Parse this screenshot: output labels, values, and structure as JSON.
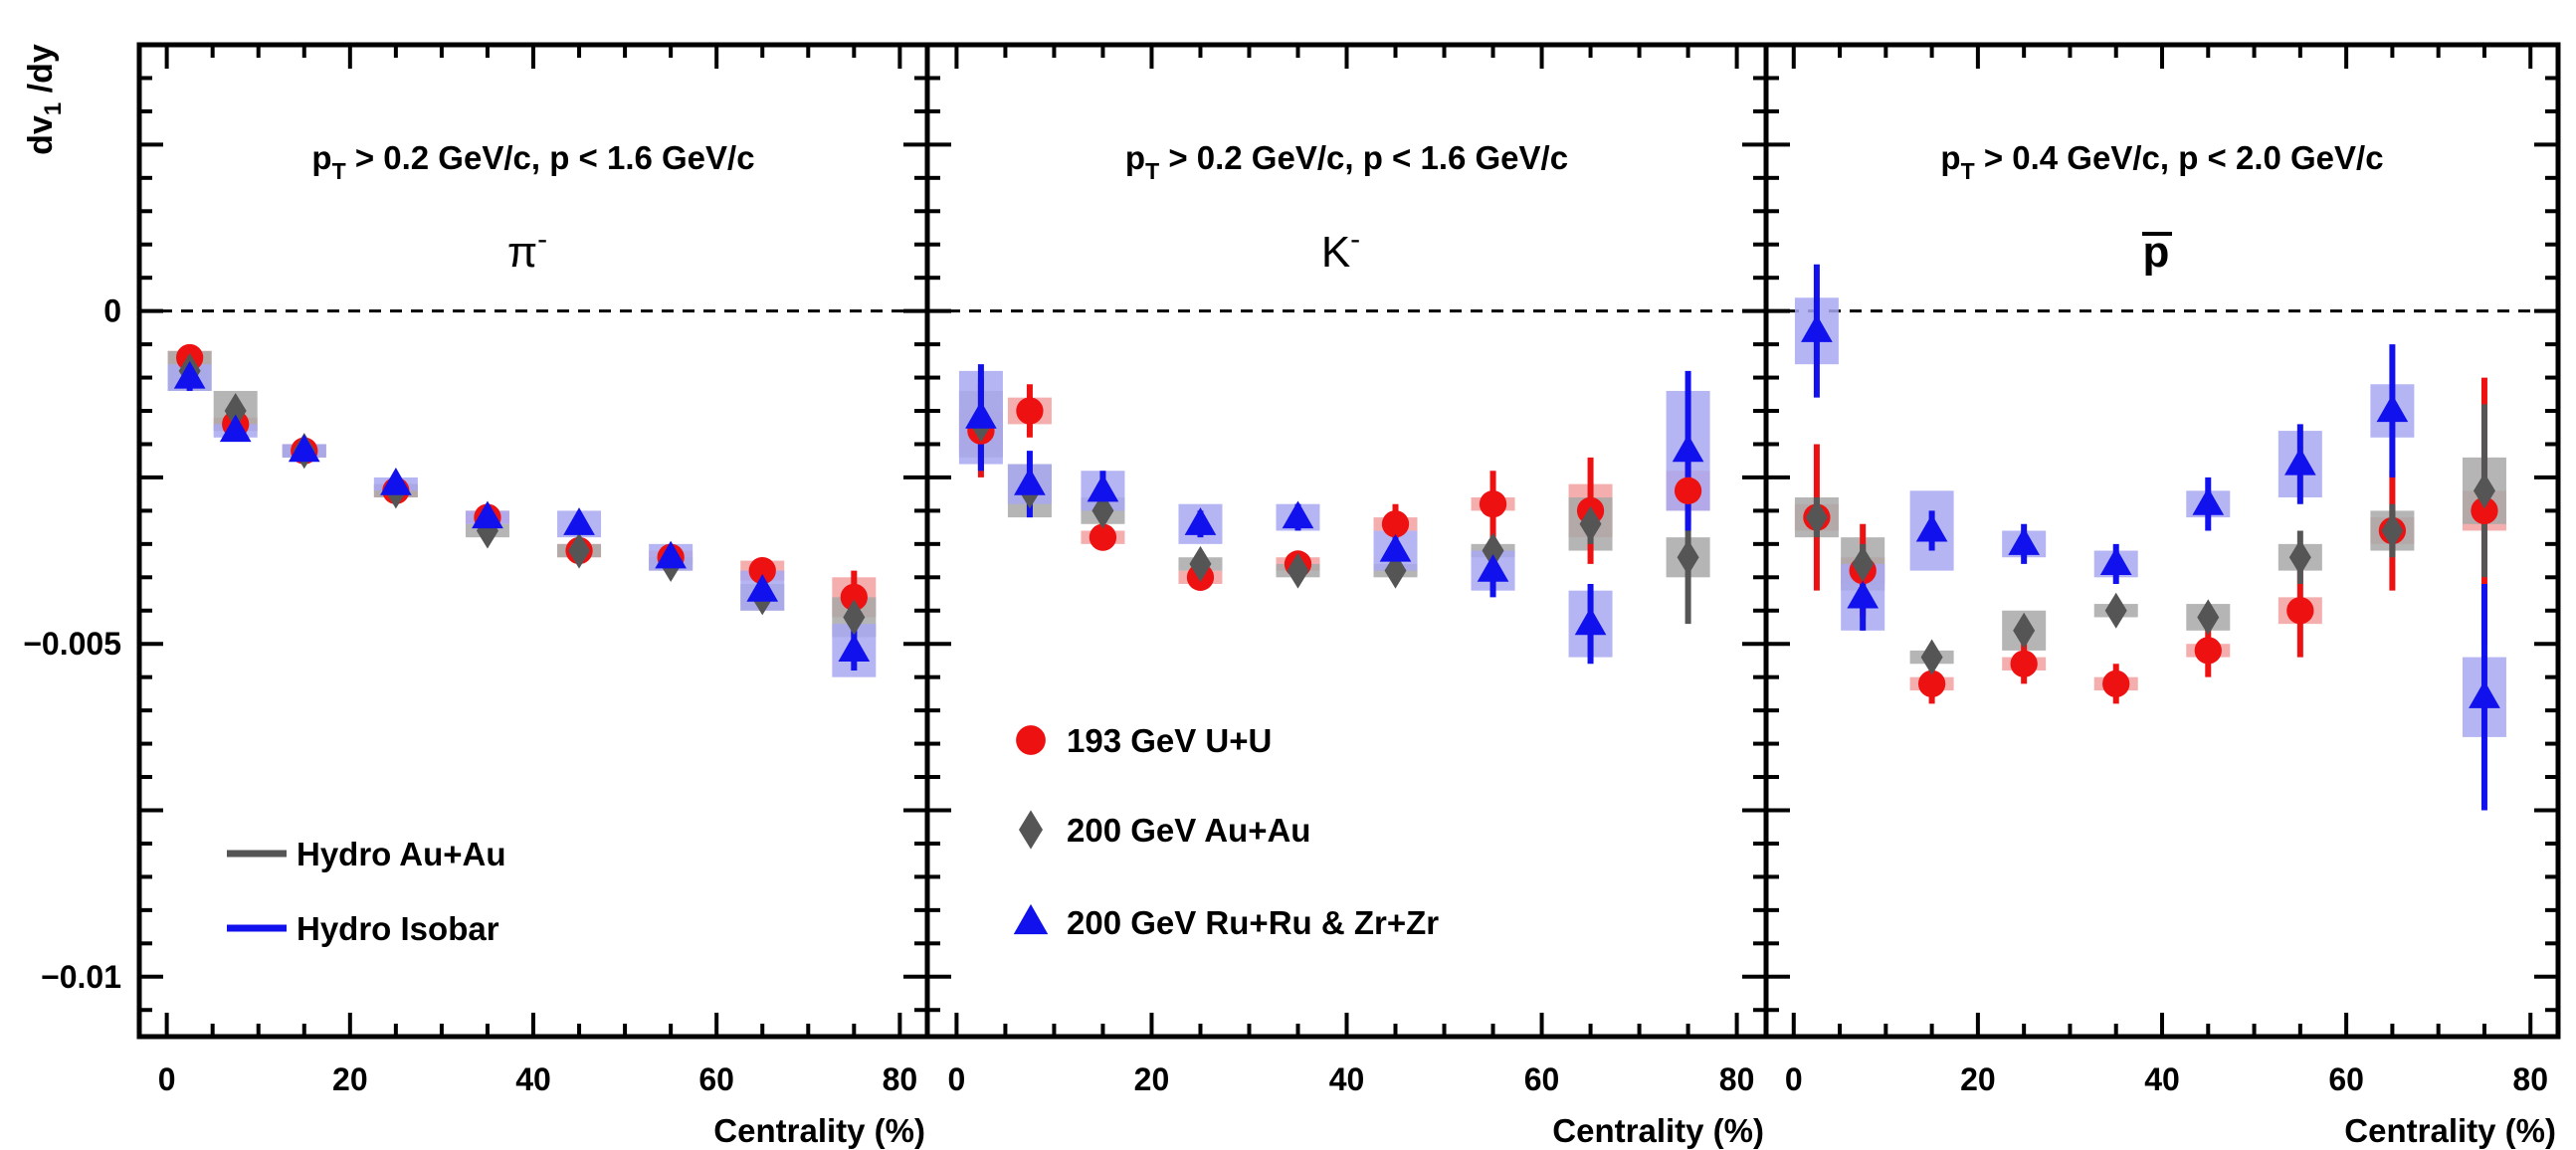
{
  "chart_data": {
    "type": "scatter",
    "ylabel": "dv",
    "ylabel_sub": "1",
    "ylabel_tail": " /dy",
    "xlabel": "Centrality (%)",
    "xlim": [
      -3,
      83
    ],
    "ylim": [
      -0.0109,
      0.004
    ],
    "x_ticks": [
      "0",
      "20",
      "40",
      "60",
      "80"
    ],
    "y_ticks": [
      {
        "value": 0,
        "label": "0"
      },
      {
        "value": -0.005,
        "label": "−0.005"
      },
      {
        "value": -0.01,
        "label": "−0.01"
      }
    ],
    "zero_line": true,
    "legend_markers": [
      {
        "label": "193 GeV U+U",
        "marker": "circle",
        "color": "#ee1111"
      },
      {
        "label": "200 GeV Au+Au",
        "marker": "diamond",
        "color": "#555555"
      },
      {
        "label": "200 GeV Ru+Ru & Zr+Zr",
        "marker": "triangle",
        "color": "#1111ee"
      }
    ],
    "legend_lines": [
      {
        "label": "Hydro Au+Au",
        "color": "#555555"
      },
      {
        "label": "Hydro Isobar",
        "color": "#1111ee"
      }
    ],
    "series_style": {
      "uu": {
        "marker": "circle",
        "color": "#ee1111",
        "box": "#f2a0a0"
      },
      "auau": {
        "marker": "diamond",
        "color": "#555555",
        "box": "#a8a8a8"
      },
      "iso": {
        "marker": "triangle",
        "color": "#1111ee",
        "box": "#a8a8f2"
      }
    },
    "panels": [
      {
        "particle": "π",
        "particle_sup": "-",
        "cut": {
          "p": "p",
          "T": "T",
          "text": " > 0.2 GeV/c, p < 1.6 GeV/c"
        },
        "series": {
          "uu": [
            {
              "x": 2.5,
              "y": -0.0007,
              "err": 0.0001,
              "sys": 0.0001
            },
            {
              "x": 7.5,
              "y": -0.0017,
              "err": 0.0001,
              "sys": 0.0001
            },
            {
              "x": 15,
              "y": -0.0021,
              "err": 0.0001,
              "sys": 0.0001
            },
            {
              "x": 25,
              "y": -0.0027,
              "err": 0.0001,
              "sys": 0.0001
            },
            {
              "x": 35,
              "y": -0.0031,
              "err": 0.0001,
              "sys": 0.0001
            },
            {
              "x": 45,
              "y": -0.0036,
              "err": 0.0001,
              "sys": 0.0001
            },
            {
              "x": 55,
              "y": -0.0037,
              "err": 0.0001,
              "sys": 0.0001
            },
            {
              "x": 65,
              "y": -0.0039,
              "err": 0.0001,
              "sys": 0.00015
            },
            {
              "x": 75,
              "y": -0.0043,
              "err": 0.0004,
              "sys": 0.0003
            }
          ],
          "auau": [
            {
              "x": 2.5,
              "y": -0.0009,
              "err": 0.0001,
              "sys": 0.0003
            },
            {
              "x": 7.5,
              "y": -0.0015,
              "err": 0.0001,
              "sys": 0.0003
            },
            {
              "x": 15,
              "y": -0.0021,
              "err": 0.0001,
              "sys": 0.0001
            },
            {
              "x": 25,
              "y": -0.0027,
              "err": 0.0001,
              "sys": 0.0001
            },
            {
              "x": 35,
              "y": -0.0033,
              "err": 0.0001,
              "sys": 0.0001
            },
            {
              "x": 45,
              "y": -0.0036,
              "err": 0.0001,
              "sys": 0.0001
            },
            {
              "x": 55,
              "y": -0.0038,
              "err": 0.0001,
              "sys": 0.0001
            },
            {
              "x": 65,
              "y": -0.0043,
              "err": 0.0001,
              "sys": 0.0002
            },
            {
              "x": 75,
              "y": -0.0046,
              "err": 0.0003,
              "sys": 0.0003
            }
          ],
          "iso": [
            {
              "x": 2.5,
              "y": -0.001,
              "err": 0.0002,
              "sys": 0.0002
            },
            {
              "x": 7.5,
              "y": -0.0018,
              "err": 0.0001,
              "sys": 0.0001
            },
            {
              "x": 15,
              "y": -0.0021,
              "err": 0.0001,
              "sys": 0.0001
            },
            {
              "x": 25,
              "y": -0.0026,
              "err": 0.0001,
              "sys": 0.0001
            },
            {
              "x": 35,
              "y": -0.0031,
              "err": 0.0001,
              "sys": 0.0001
            },
            {
              "x": 45,
              "y": -0.0032,
              "err": 0.0001,
              "sys": 0.0002
            },
            {
              "x": 55,
              "y": -0.0037,
              "err": 0.0001,
              "sys": 0.0002
            },
            {
              "x": 65,
              "y": -0.0042,
              "err": 0.0001,
              "sys": 0.0003
            },
            {
              "x": 75,
              "y": -0.0051,
              "err": 0.0003,
              "sys": 0.0004
            }
          ]
        }
      },
      {
        "particle": "K",
        "particle_sup": "-",
        "cut": {
          "p": "p",
          "T": "T",
          "text": " > 0.2 GeV/c, p < 1.6 GeV/c"
        },
        "series": {
          "uu": [
            {
              "x": 2.5,
              "y": -0.0018,
              "err": 0.0007,
              "sys": 0.0003
            },
            {
              "x": 7.5,
              "y": -0.0015,
              "err": 0.0004,
              "sys": 0.0002
            },
            {
              "x": 15,
              "y": -0.0034,
              "err": 0.0002,
              "sys": 0.0001
            },
            {
              "x": 25,
              "y": -0.004,
              "err": 0.0002,
              "sys": 0.0001
            },
            {
              "x": 35,
              "y": -0.0038,
              "err": 0.0002,
              "sys": 0.0001
            },
            {
              "x": 45,
              "y": -0.0032,
              "err": 0.0003,
              "sys": 0.0001
            },
            {
              "x": 55,
              "y": -0.0029,
              "err": 0.0005,
              "sys": 0.0001
            },
            {
              "x": 65,
              "y": -0.003,
              "err": 0.0008,
              "sys": 0.0004
            },
            {
              "x": 75,
              "y": -0.0027,
              "err": 0.0005,
              "sys": 0.0003
            }
          ],
          "auau": [
            {
              "x": 2.5,
              "y": -0.0017,
              "err": 0.0007,
              "sys": 0.0005
            },
            {
              "x": 7.5,
              "y": -0.0027,
              "err": 0.0003,
              "sys": 0.0004
            },
            {
              "x": 15,
              "y": -0.003,
              "err": 0.0002,
              "sys": 0.0002
            },
            {
              "x": 25,
              "y": -0.0038,
              "err": 0.0001,
              "sys": 0.0001
            },
            {
              "x": 35,
              "y": -0.0039,
              "err": 0.0001,
              "sys": 0.0001
            },
            {
              "x": 45,
              "y": -0.0039,
              "err": 0.0001,
              "sys": 0.0001
            },
            {
              "x": 55,
              "y": -0.0036,
              "err": 0.0002,
              "sys": 0.0001
            },
            {
              "x": 65,
              "y": -0.0032,
              "err": 0.0003,
              "sys": 0.0004
            },
            {
              "x": 75,
              "y": -0.0037,
              "err": 0.001,
              "sys": 0.0003
            }
          ],
          "iso": [
            {
              "x": 2.5,
              "y": -0.0016,
              "err": 0.0008,
              "sys": 0.0007
            },
            {
              "x": 7.5,
              "y": -0.0026,
              "err": 0.0005,
              "sys": 0.0003
            },
            {
              "x": 15,
              "y": -0.0027,
              "err": 0.0003,
              "sys": 0.0003
            },
            {
              "x": 25,
              "y": -0.0032,
              "err": 0.0002,
              "sys": 0.0003
            },
            {
              "x": 35,
              "y": -0.0031,
              "err": 0.0002,
              "sys": 0.0002
            },
            {
              "x": 45,
              "y": -0.0036,
              "err": 0.0002,
              "sys": 0.0003
            },
            {
              "x": 55,
              "y": -0.0039,
              "err": 0.0004,
              "sys": 0.0003
            },
            {
              "x": 65,
              "y": -0.0047,
              "err": 0.0006,
              "sys": 0.0005
            },
            {
              "x": 75,
              "y": -0.0021,
              "err": 0.0012,
              "sys": 0.0009
            }
          ]
        }
      },
      {
        "particle": "p",
        "particle_sup": "",
        "overline": true,
        "cut": {
          "p": "p",
          "T": "T",
          "text": " > 0.4 GeV/c, p < 2.0 GeV/c"
        },
        "series": {
          "uu": [
            {
              "x": 2.5,
              "y": -0.0031,
              "err": 0.0011,
              "sys": 0.0002
            },
            {
              "x": 7.5,
              "y": -0.0039,
              "err": 0.0007,
              "sys": 0.0002
            },
            {
              "x": 15,
              "y": -0.0056,
              "err": 0.0003,
              "sys": 0.0001
            },
            {
              "x": 25,
              "y": -0.0053,
              "err": 0.0003,
              "sys": 0.0001
            },
            {
              "x": 35,
              "y": -0.0056,
              "err": 0.0003,
              "sys": 0.0001
            },
            {
              "x": 45,
              "y": -0.0051,
              "err": 0.0004,
              "sys": 0.0001
            },
            {
              "x": 55,
              "y": -0.0045,
              "err": 0.0007,
              "sys": 0.0002
            },
            {
              "x": 65,
              "y": -0.0033,
              "err": 0.0009,
              "sys": 0.0002
            },
            {
              "x": 75,
              "y": -0.003,
              "err": 0.002,
              "sys": 0.0003
            }
          ],
          "auau": [
            {
              "x": 2.5,
              "y": -0.0031,
              "err": 0.0003,
              "sys": 0.0003
            },
            {
              "x": 7.5,
              "y": -0.0038,
              "err": 0.0003,
              "sys": 0.0004
            },
            {
              "x": 15,
              "y": -0.0052,
              "err": 0.0001,
              "sys": 0.0001
            },
            {
              "x": 25,
              "y": -0.0048,
              "err": 0.0002,
              "sys": 0.0003
            },
            {
              "x": 35,
              "y": -0.0045,
              "err": 0.0001,
              "sys": 0.0001
            },
            {
              "x": 45,
              "y": -0.0046,
              "err": 0.0002,
              "sys": 0.0002
            },
            {
              "x": 55,
              "y": -0.0037,
              "err": 0.0004,
              "sys": 0.0002
            },
            {
              "x": 65,
              "y": -0.0033,
              "err": 0.0004,
              "sys": 0.0003
            },
            {
              "x": 75,
              "y": -0.0027,
              "err": 0.0013,
              "sys": 0.0005
            }
          ],
          "iso": [
            {
              "x": 2.5,
              "y": -0.0003,
              "err": 0.001,
              "sys": 0.0005
            },
            {
              "x": 7.5,
              "y": -0.0043,
              "err": 0.0005,
              "sys": 0.0005
            },
            {
              "x": 15,
              "y": -0.0033,
              "err": 0.0003,
              "sys": 0.0006
            },
            {
              "x": 25,
              "y": -0.0035,
              "err": 0.0003,
              "sys": 0.0002
            },
            {
              "x": 35,
              "y": -0.0038,
              "err": 0.0003,
              "sys": 0.0002
            },
            {
              "x": 45,
              "y": -0.0029,
              "err": 0.0004,
              "sys": 0.0002
            },
            {
              "x": 55,
              "y": -0.0023,
              "err": 0.0006,
              "sys": 0.0005
            },
            {
              "x": 65,
              "y": -0.0015,
              "err": 0.001,
              "sys": 0.0004
            },
            {
              "x": 75,
              "y": -0.0058,
              "err": 0.0017,
              "sys": 0.0006
            }
          ]
        }
      }
    ]
  }
}
